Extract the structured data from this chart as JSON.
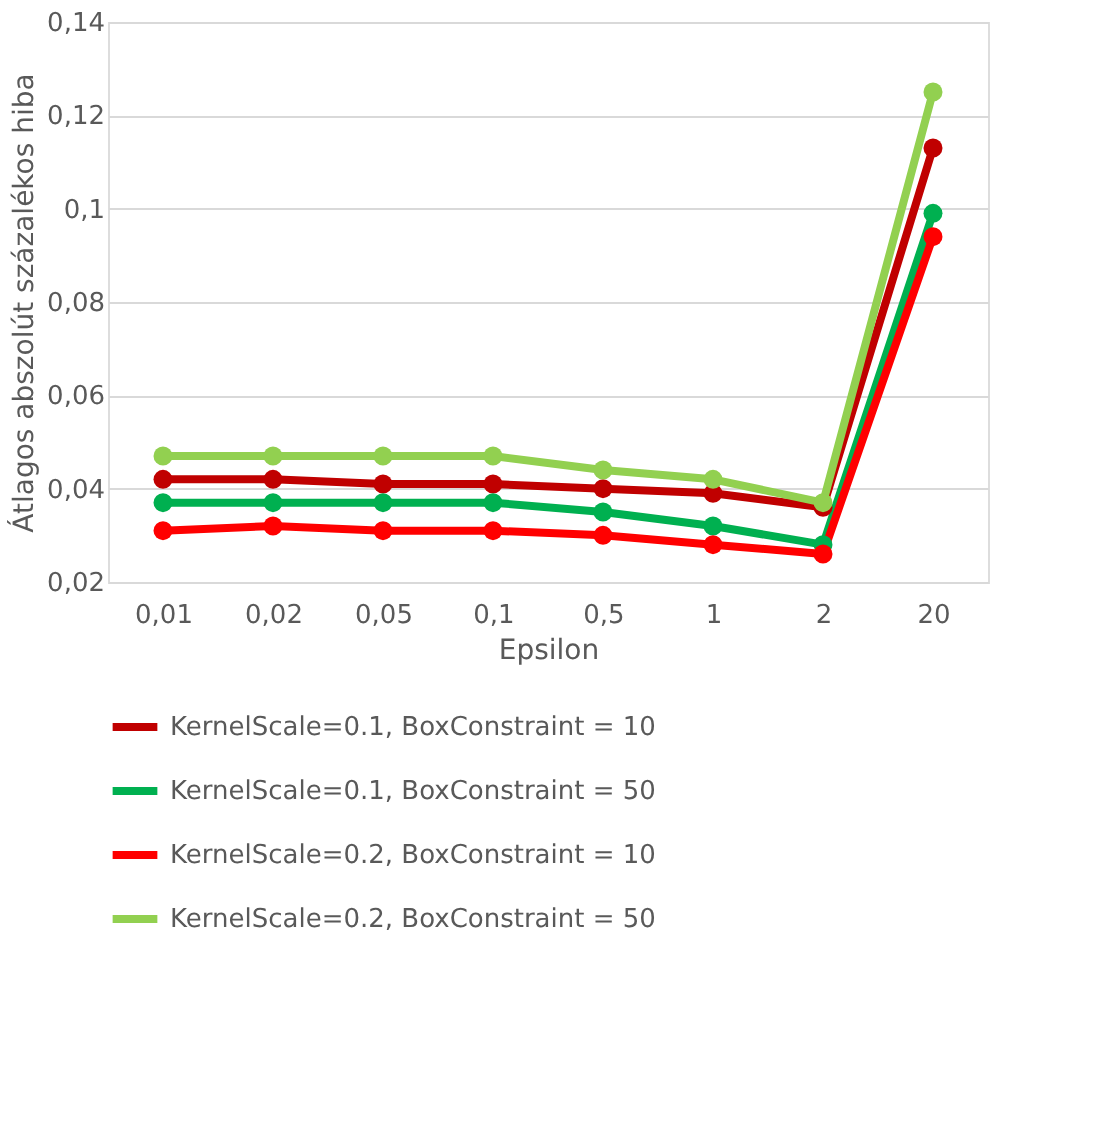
{
  "chart_data": {
    "type": "line",
    "xlabel": "Epsilon",
    "ylabel": "Átlagos abszolút százalékos hiba",
    "categories": [
      "0,01",
      "0,02",
      "0,05",
      "0,1",
      "0,5",
      "1",
      "2",
      "20"
    ],
    "series": [
      {
        "name": "KernelScale=0.1, BoxConstraint = 10",
        "color": "#c00000",
        "values": [
          0.042,
          0.042,
          0.041,
          0.041,
          0.04,
          0.039,
          0.036,
          0.113
        ]
      },
      {
        "name": "KernelScale=0.1, BoxConstraint = 50",
        "color": "#00b050",
        "values": [
          0.037,
          0.037,
          0.037,
          0.037,
          0.035,
          0.032,
          0.028,
          0.099
        ]
      },
      {
        "name": "KernelScale=0.2, BoxConstraint = 10",
        "color": "#ff0000",
        "values": [
          0.031,
          0.032,
          0.031,
          0.031,
          0.03,
          0.028,
          0.026,
          0.094
        ]
      },
      {
        "name": "KernelScale=0.2, BoxConstraint = 50",
        "color": "#92d050",
        "values": [
          0.047,
          0.047,
          0.047,
          0.047,
          0.044,
          0.042,
          0.037,
          0.125
        ]
      }
    ],
    "ylim": [
      0.02,
      0.14
    ],
    "yticks": [
      {
        "value": 0.02,
        "label": "0,02"
      },
      {
        "value": 0.04,
        "label": "0,04"
      },
      {
        "value": 0.06,
        "label": "0,06"
      },
      {
        "value": 0.08,
        "label": "0,08"
      },
      {
        "value": 0.1,
        "label": "0,1"
      },
      {
        "value": 0.12,
        "label": "0,12"
      },
      {
        "value": 0.14,
        "label": "0,14"
      }
    ],
    "grid": "y",
    "legend": "bottom",
    "marker": "circle",
    "line_style": "solid"
  }
}
